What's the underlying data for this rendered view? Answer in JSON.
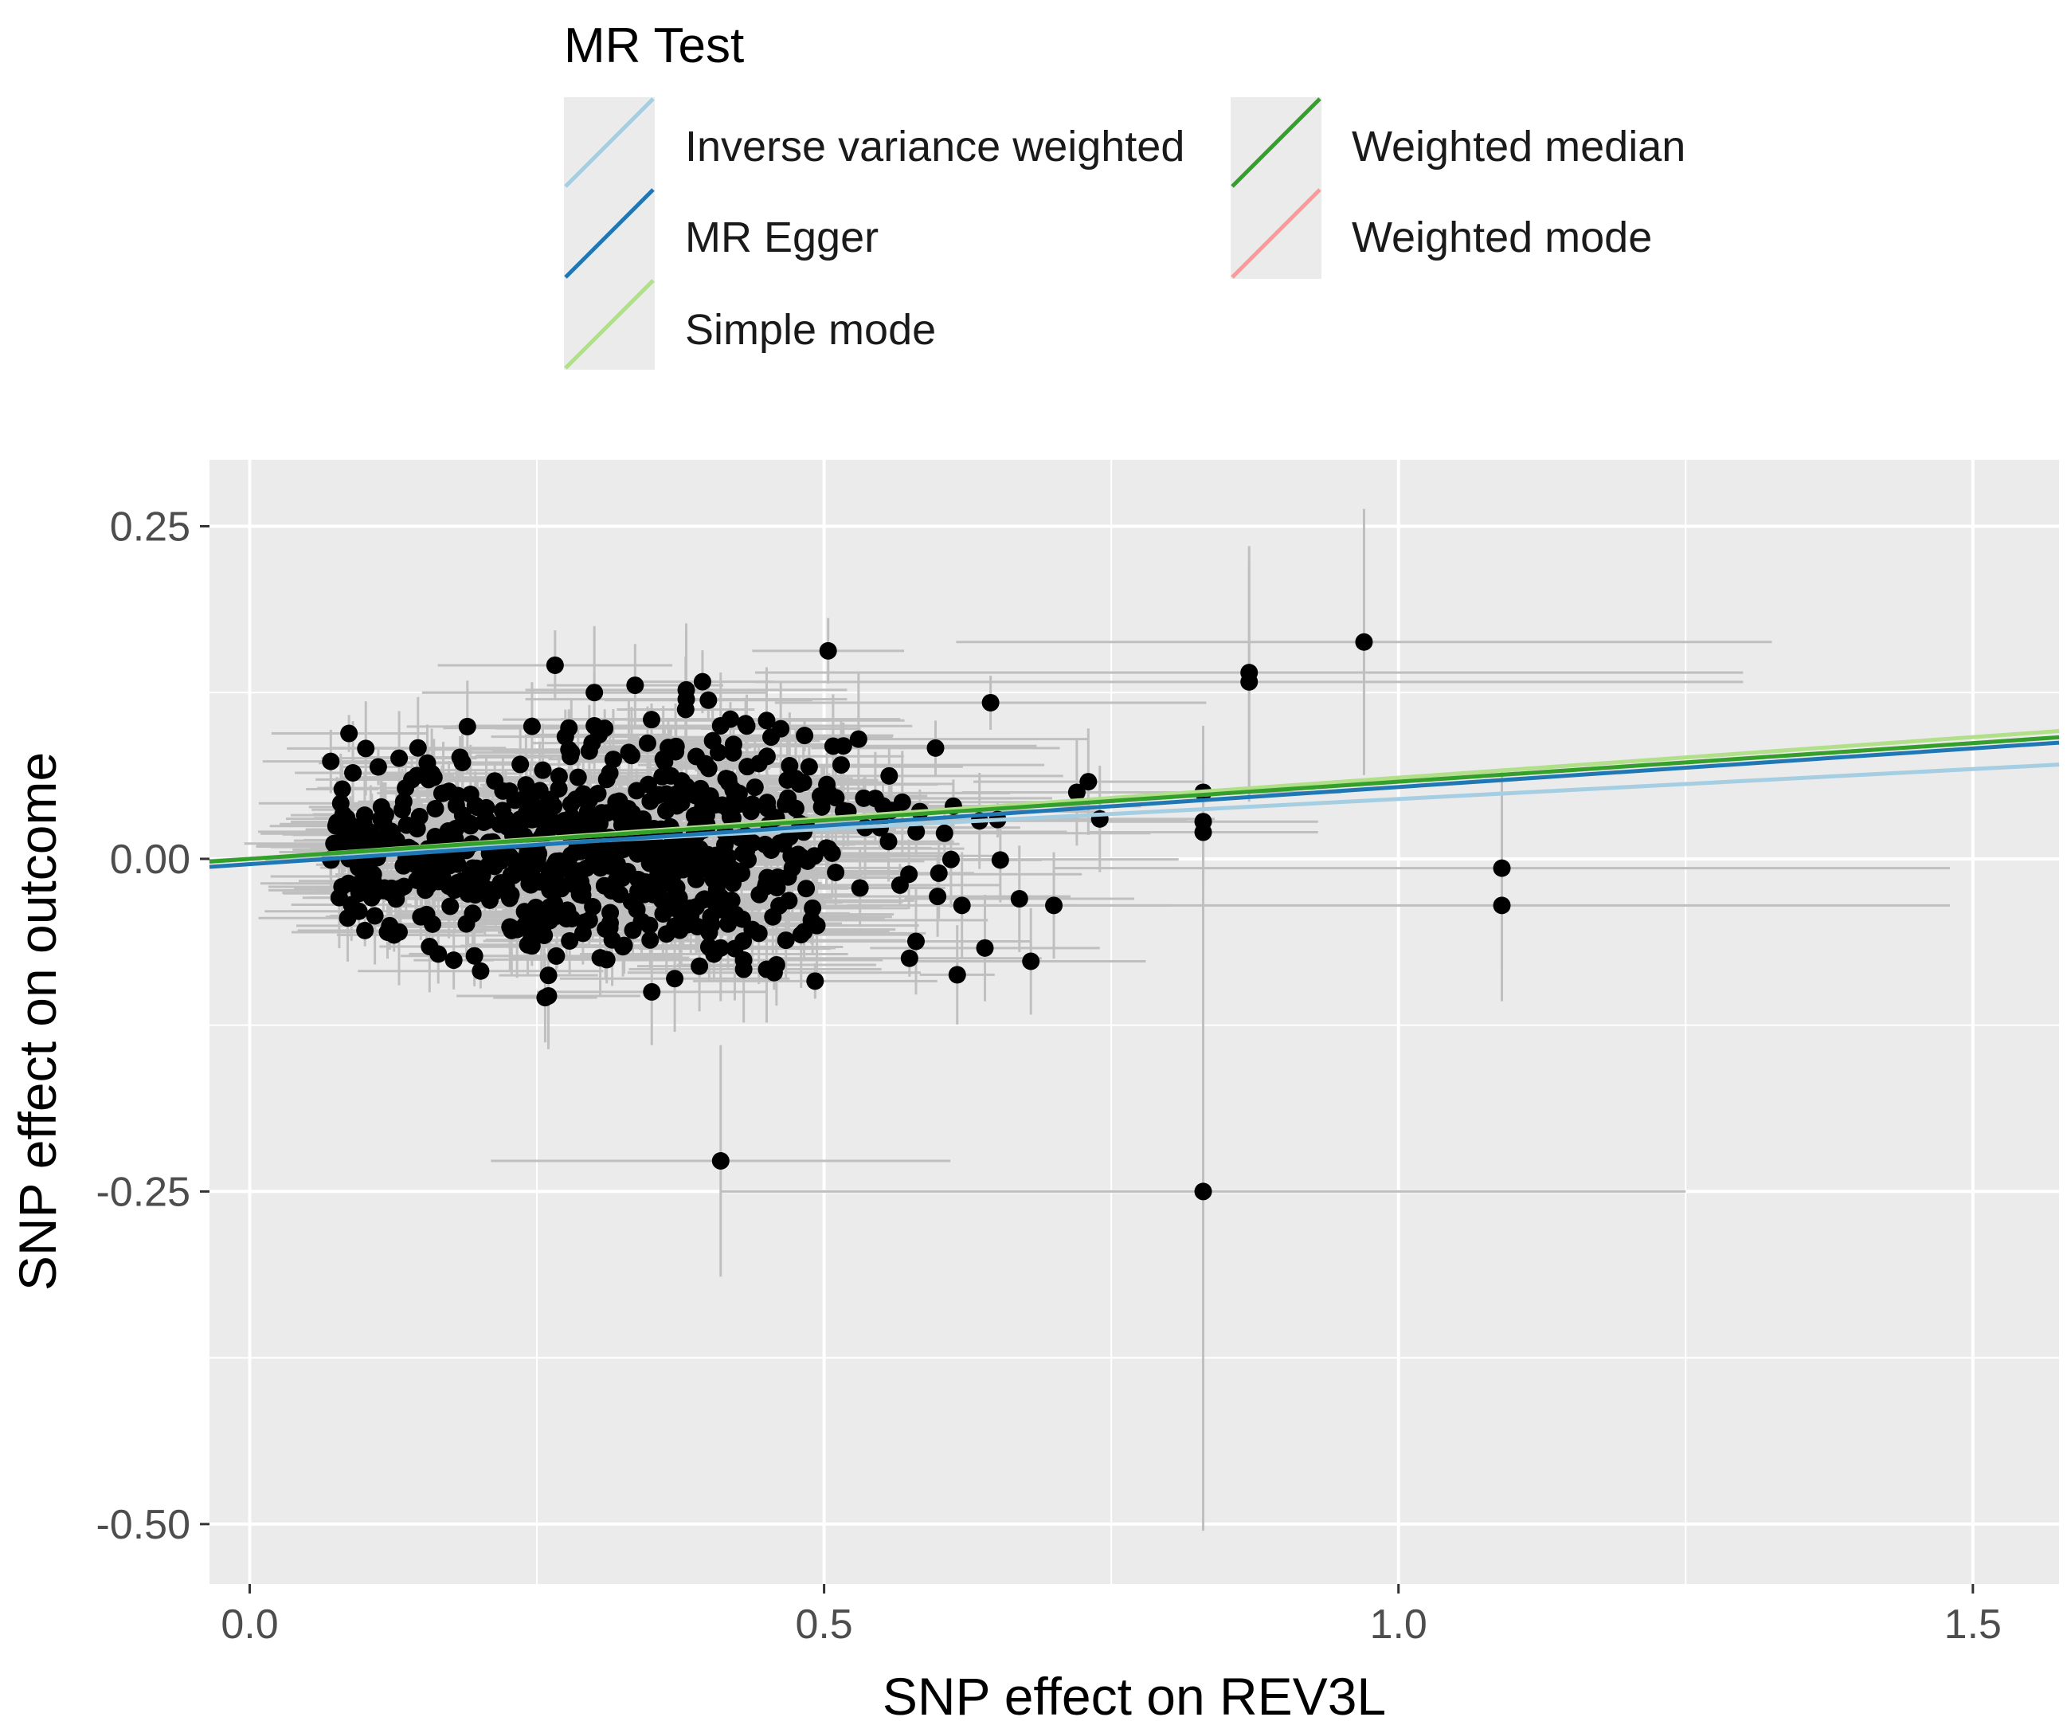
{
  "chart_data": {
    "type": "scatter",
    "title": "",
    "xlabel": "SNP effect on REV3L",
    "ylabel": "SNP effect on outcome",
    "xlim": [
      -0.035,
      1.575
    ],
    "ylim": [
      -0.545,
      0.3
    ],
    "x_ticks": [
      {
        "value": 0.0,
        "label": "0.0"
      },
      {
        "value": 0.5,
        "label": "0.5"
      },
      {
        "value": 1.0,
        "label": "1.0"
      },
      {
        "value": 1.5,
        "label": "1.5"
      }
    ],
    "y_ticks": [
      {
        "value": 0.25,
        "label": "0.25"
      },
      {
        "value": 0.0,
        "label": "0.00"
      },
      {
        "value": -0.25,
        "label": "-0.25"
      },
      {
        "value": -0.5,
        "label": "-0.50"
      }
    ],
    "grid": true,
    "legend": {
      "title": "MR Test",
      "placement": "top",
      "entries": [
        {
          "label": "Inverse variance weighted",
          "color": "#a6cee3"
        },
        {
          "label": "MR Egger",
          "color": "#1f78b4"
        },
        {
          "label": "Simple mode",
          "color": "#b2df8a"
        },
        {
          "label": "Weighted median",
          "color": "#33a02c"
        },
        {
          "label": "Weighted mode",
          "color": "#fb9a99"
        }
      ]
    },
    "regression_lines": [
      {
        "method": "Inverse variance weighted",
        "intercept": 0.0,
        "slope": 0.045
      },
      {
        "method": "Weighted mode",
        "intercept": 0.0,
        "slope": 0.058
      },
      {
        "method": "Simple mode",
        "intercept": 0.0,
        "slope": 0.061
      },
      {
        "method": "Weighted median",
        "intercept": 0.0,
        "slope": 0.058
      },
      {
        "method": "MR Egger",
        "intercept": -0.004,
        "slope": 0.058
      }
    ],
    "points": [
      {
        "x": 0.97,
        "y": 0.163,
        "xse": 0.355,
        "yse": 0.1
      },
      {
        "x": 0.87,
        "y": 0.14,
        "xse": 0.43,
        "yse": 0.095
      },
      {
        "x": 0.87,
        "y": 0.133,
        "xse": 0.43,
        "yse": 0.09
      },
      {
        "x": 1.09,
        "y": -0.007,
        "xse": 0.39,
        "yse": 0.075
      },
      {
        "x": 1.09,
        "y": -0.035,
        "xse": 0.39,
        "yse": 0.072
      },
      {
        "x": 0.83,
        "y": -0.25,
        "xse": 0.42,
        "yse": 0.255
      },
      {
        "x": 0.41,
        "y": -0.227,
        "xse": 0.2,
        "yse": 0.087
      },
      {
        "x": 0.83,
        "y": 0.05,
        "xse": 0.12,
        "yse": 0.05
      },
      {
        "x": 0.83,
        "y": 0.028,
        "xse": 0.1,
        "yse": 0.04
      },
      {
        "x": 0.83,
        "y": 0.02,
        "xse": 0.1,
        "yse": 0.04
      },
      {
        "x": 0.53,
        "y": 0.09,
        "xse": 0.2,
        "yse": 0.05
      },
      {
        "x": 0.3,
        "y": 0.125,
        "xse": 0.15,
        "yse": 0.05
      },
      {
        "x": 0.38,
        "y": 0.127,
        "xse": 0.14,
        "yse": 0.05
      },
      {
        "x": 0.38,
        "y": 0.12,
        "xse": 0.14,
        "yse": 0.05
      },
      {
        "x": 0.41,
        "y": 0.1,
        "xse": 0.12,
        "yse": 0.04
      },
      {
        "x": 0.3,
        "y": 0.1,
        "xse": 0.12,
        "yse": 0.04
      },
      {
        "x": 0.45,
        "y": 0.104,
        "xse": 0.12,
        "yse": 0.04
      },
      {
        "x": 0.26,
        "y": -0.103,
        "xse": 0.08,
        "yse": 0.04
      },
      {
        "x": 0.13,
        "y": -0.055,
        "xse": 0.06,
        "yse": 0.04
      },
      {
        "x": 0.35,
        "y": -0.1,
        "xse": 0.1,
        "yse": 0.04
      },
      {
        "x": 0.37,
        "y": -0.09,
        "xse": 0.1,
        "yse": 0.04
      },
      {
        "x": 0.43,
        "y": -0.083,
        "xse": 0.1,
        "yse": 0.04
      },
      {
        "x": 0.45,
        "y": -0.083,
        "xse": 0.1,
        "yse": 0.04
      },
      {
        "x": 0.48,
        "y": -0.057,
        "xse": 0.1,
        "yse": 0.04
      },
      {
        "x": 0.41,
        "y": -0.067,
        "xse": 0.1,
        "yse": 0.04
      },
      {
        "x": 0.58,
        "y": -0.062,
        "xse": 0.1,
        "yse": 0.04
      },
      {
        "x": 0.64,
        "y": -0.067,
        "xse": 0.1,
        "yse": 0.04
      },
      {
        "x": 0.68,
        "y": -0.077,
        "xse": 0.1,
        "yse": 0.04
      },
      {
        "x": 0.73,
        "y": 0.058,
        "xse": 0.1,
        "yse": 0.04
      },
      {
        "x": 0.72,
        "y": 0.05,
        "xse": 0.1,
        "yse": 0.04
      },
      {
        "x": 0.67,
        "y": -0.03,
        "xse": 0.1,
        "yse": 0.04
      },
      {
        "x": 0.62,
        "y": -0.035,
        "xse": 0.1,
        "yse": 0.04
      },
      {
        "x": 0.7,
        "y": -0.035,
        "xse": 0.1,
        "yse": 0.04
      },
      {
        "x": 0.47,
        "y": 0.07,
        "xse": 0.1,
        "yse": 0.04
      },
      {
        "x": 0.33,
        "y": 0.08,
        "xse": 0.1,
        "yse": 0.04
      },
      {
        "x": 0.28,
        "y": 0.08,
        "xse": 0.1,
        "yse": 0.04
      },
      {
        "x": 0.36,
        "y": 0.075,
        "xse": 0.1,
        "yse": 0.04
      },
      {
        "x": 0.74,
        "y": 0.03,
        "xse": 0.1,
        "yse": 0.04
      }
    ],
    "cloud": {
      "count": 720,
      "x_center": 0.3,
      "x_spread": 0.24,
      "x_min": 0.07,
      "x_max": 0.76,
      "y_spread": 0.03,
      "seed": 17
    }
  }
}
